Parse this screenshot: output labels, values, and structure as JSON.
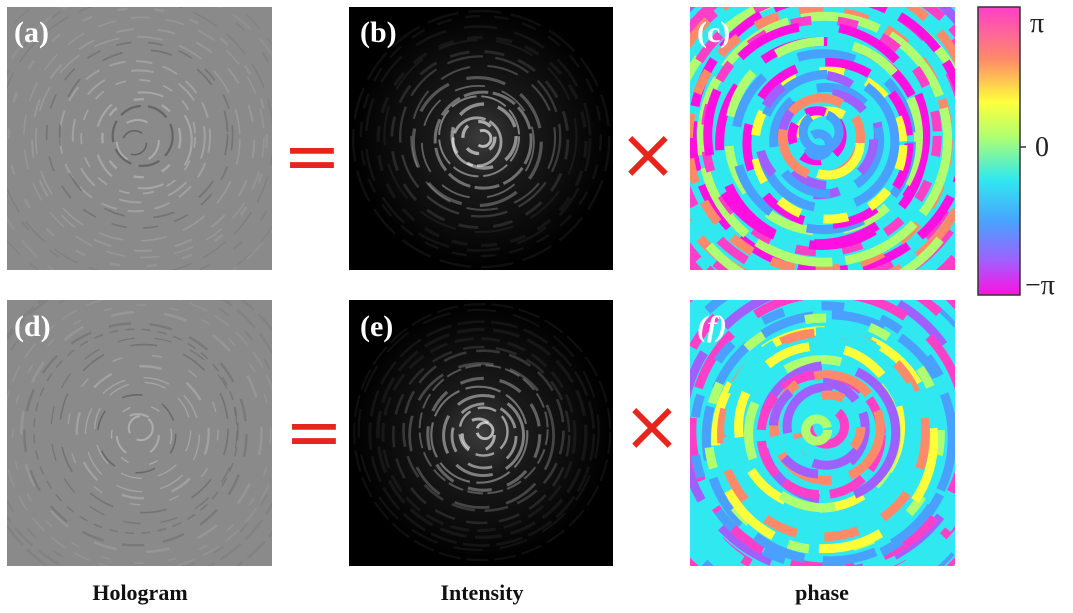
{
  "panels": [
    {
      "label": "(a)"
    },
    {
      "label": "(b)"
    },
    {
      "label": "(c)"
    },
    {
      "label": "(d)"
    },
    {
      "label": "(e)"
    },
    {
      "label": "(f)"
    }
  ],
  "operators": {
    "equals": "=",
    "times": "×"
  },
  "colorbar": {
    "top": "π",
    "middle": "0",
    "bottom": "−π"
  },
  "captions": [
    "Hologram",
    "Intensity",
    "phase"
  ]
}
